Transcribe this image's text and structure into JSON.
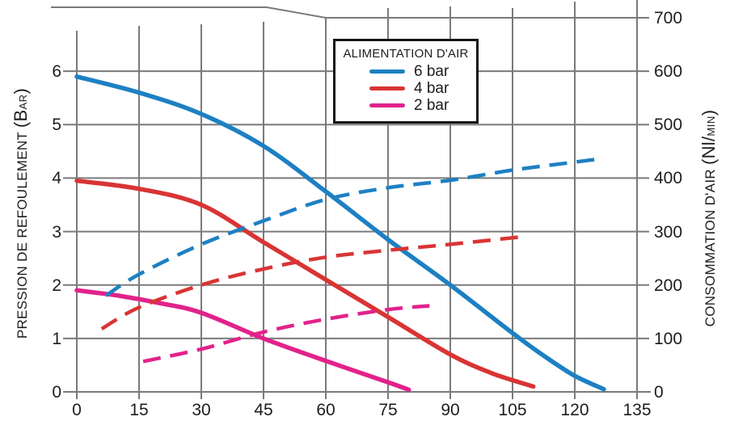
{
  "chart_data": {
    "type": "line",
    "title": "",
    "legend": {
      "title": "ALIMENTATION D'AIR",
      "position": "top-center",
      "entries": [
        {
          "label": "6 bar",
          "color": "#1d80c3"
        },
        {
          "label": "4 bar",
          "color": "#d93434"
        },
        {
          "label": "2 bar",
          "color": "#e2228b"
        }
      ]
    },
    "x_axis": {
      "range": [
        0,
        135
      ],
      "tick_labels": [
        "0",
        "15",
        "30",
        "45",
        "60",
        "75",
        "90",
        "105",
        "120",
        "135"
      ],
      "grid": true
    },
    "y_axis_left": {
      "label": "PRESSION DE REFOULEMENT (BAR)",
      "label_parts": {
        "main": "PRESSION DE REFOULEMENT ",
        "unit_open": "(B",
        "unit_small": "AR",
        "unit_close": ")"
      },
      "range": [
        0,
        7
      ],
      "tick_labels": [
        "0",
        "1",
        "2",
        "3",
        "4",
        "5",
        "6"
      ]
    },
    "y_axis_right": {
      "label": "CONSOMMATION D'AIR (Nl/MIN)",
      "label_parts": {
        "main": "CONSOMMATION D'AIR ",
        "unit_open": "(Nl/",
        "unit_small": "MIN",
        "unit_close": ")"
      },
      "range": [
        0,
        700
      ],
      "tick_labels": [
        "0",
        "100",
        "200",
        "300",
        "400",
        "500",
        "600",
        "700"
      ]
    },
    "series": [
      {
        "name": "6 bar",
        "measure": "pression",
        "axis": "left",
        "style": "solid",
        "color": "#1d80c3",
        "points": [
          [
            0,
            5.9
          ],
          [
            15,
            5.6
          ],
          [
            30,
            5.2
          ],
          [
            45,
            4.6
          ],
          [
            60,
            3.75
          ],
          [
            75,
            2.85
          ],
          [
            90,
            2.0
          ],
          [
            105,
            1.1
          ],
          [
            113,
            0.65
          ],
          [
            120,
            0.3
          ],
          [
            127,
            0.05
          ]
        ]
      },
      {
        "name": "4 bar",
        "measure": "pression",
        "axis": "left",
        "style": "solid",
        "color": "#d93434",
        "points": [
          [
            0,
            3.95
          ],
          [
            15,
            3.8
          ],
          [
            30,
            3.5
          ],
          [
            45,
            2.8
          ],
          [
            60,
            2.1
          ],
          [
            75,
            1.4
          ],
          [
            90,
            0.7
          ],
          [
            100,
            0.35
          ],
          [
            110,
            0.1
          ]
        ]
      },
      {
        "name": "2 bar",
        "measure": "pression",
        "axis": "left",
        "style": "solid",
        "color": "#e2228b",
        "points": [
          [
            0,
            1.9
          ],
          [
            10,
            1.8
          ],
          [
            20,
            1.66
          ],
          [
            30,
            1.48
          ],
          [
            45,
            1.0
          ],
          [
            60,
            0.58
          ],
          [
            75,
            0.18
          ],
          [
            80,
            0.04
          ]
        ]
      },
      {
        "name": "6 bar",
        "measure": "air",
        "axis": "right",
        "style": "dashed",
        "color": "#1d80c3",
        "points": [
          [
            7,
            180
          ],
          [
            15,
            220
          ],
          [
            30,
            276
          ],
          [
            45,
            320
          ],
          [
            60,
            360
          ],
          [
            75,
            382
          ],
          [
            90,
            396
          ],
          [
            105,
            415
          ],
          [
            120,
            430
          ],
          [
            127,
            437
          ]
        ]
      },
      {
        "name": "4 bar",
        "measure": "air",
        "axis": "right",
        "style": "dashed",
        "color": "#d93434",
        "points": [
          [
            6,
            118
          ],
          [
            15,
            158
          ],
          [
            30,
            200
          ],
          [
            45,
            230
          ],
          [
            60,
            252
          ],
          [
            75,
            265
          ],
          [
            90,
            276
          ],
          [
            107,
            290
          ]
        ]
      },
      {
        "name": "2 bar",
        "measure": "air",
        "axis": "right",
        "style": "dashed",
        "color": "#e2228b",
        "points": [
          [
            16,
            57
          ],
          [
            30,
            80
          ],
          [
            45,
            112
          ],
          [
            60,
            136
          ],
          [
            75,
            154
          ],
          [
            85,
            161
          ]
        ]
      }
    ],
    "colors": {
      "grid": "#7a7a7a",
      "text": "#1f1c1d",
      "background": "#ffffff",
      "legend_border": "#161616"
    }
  }
}
